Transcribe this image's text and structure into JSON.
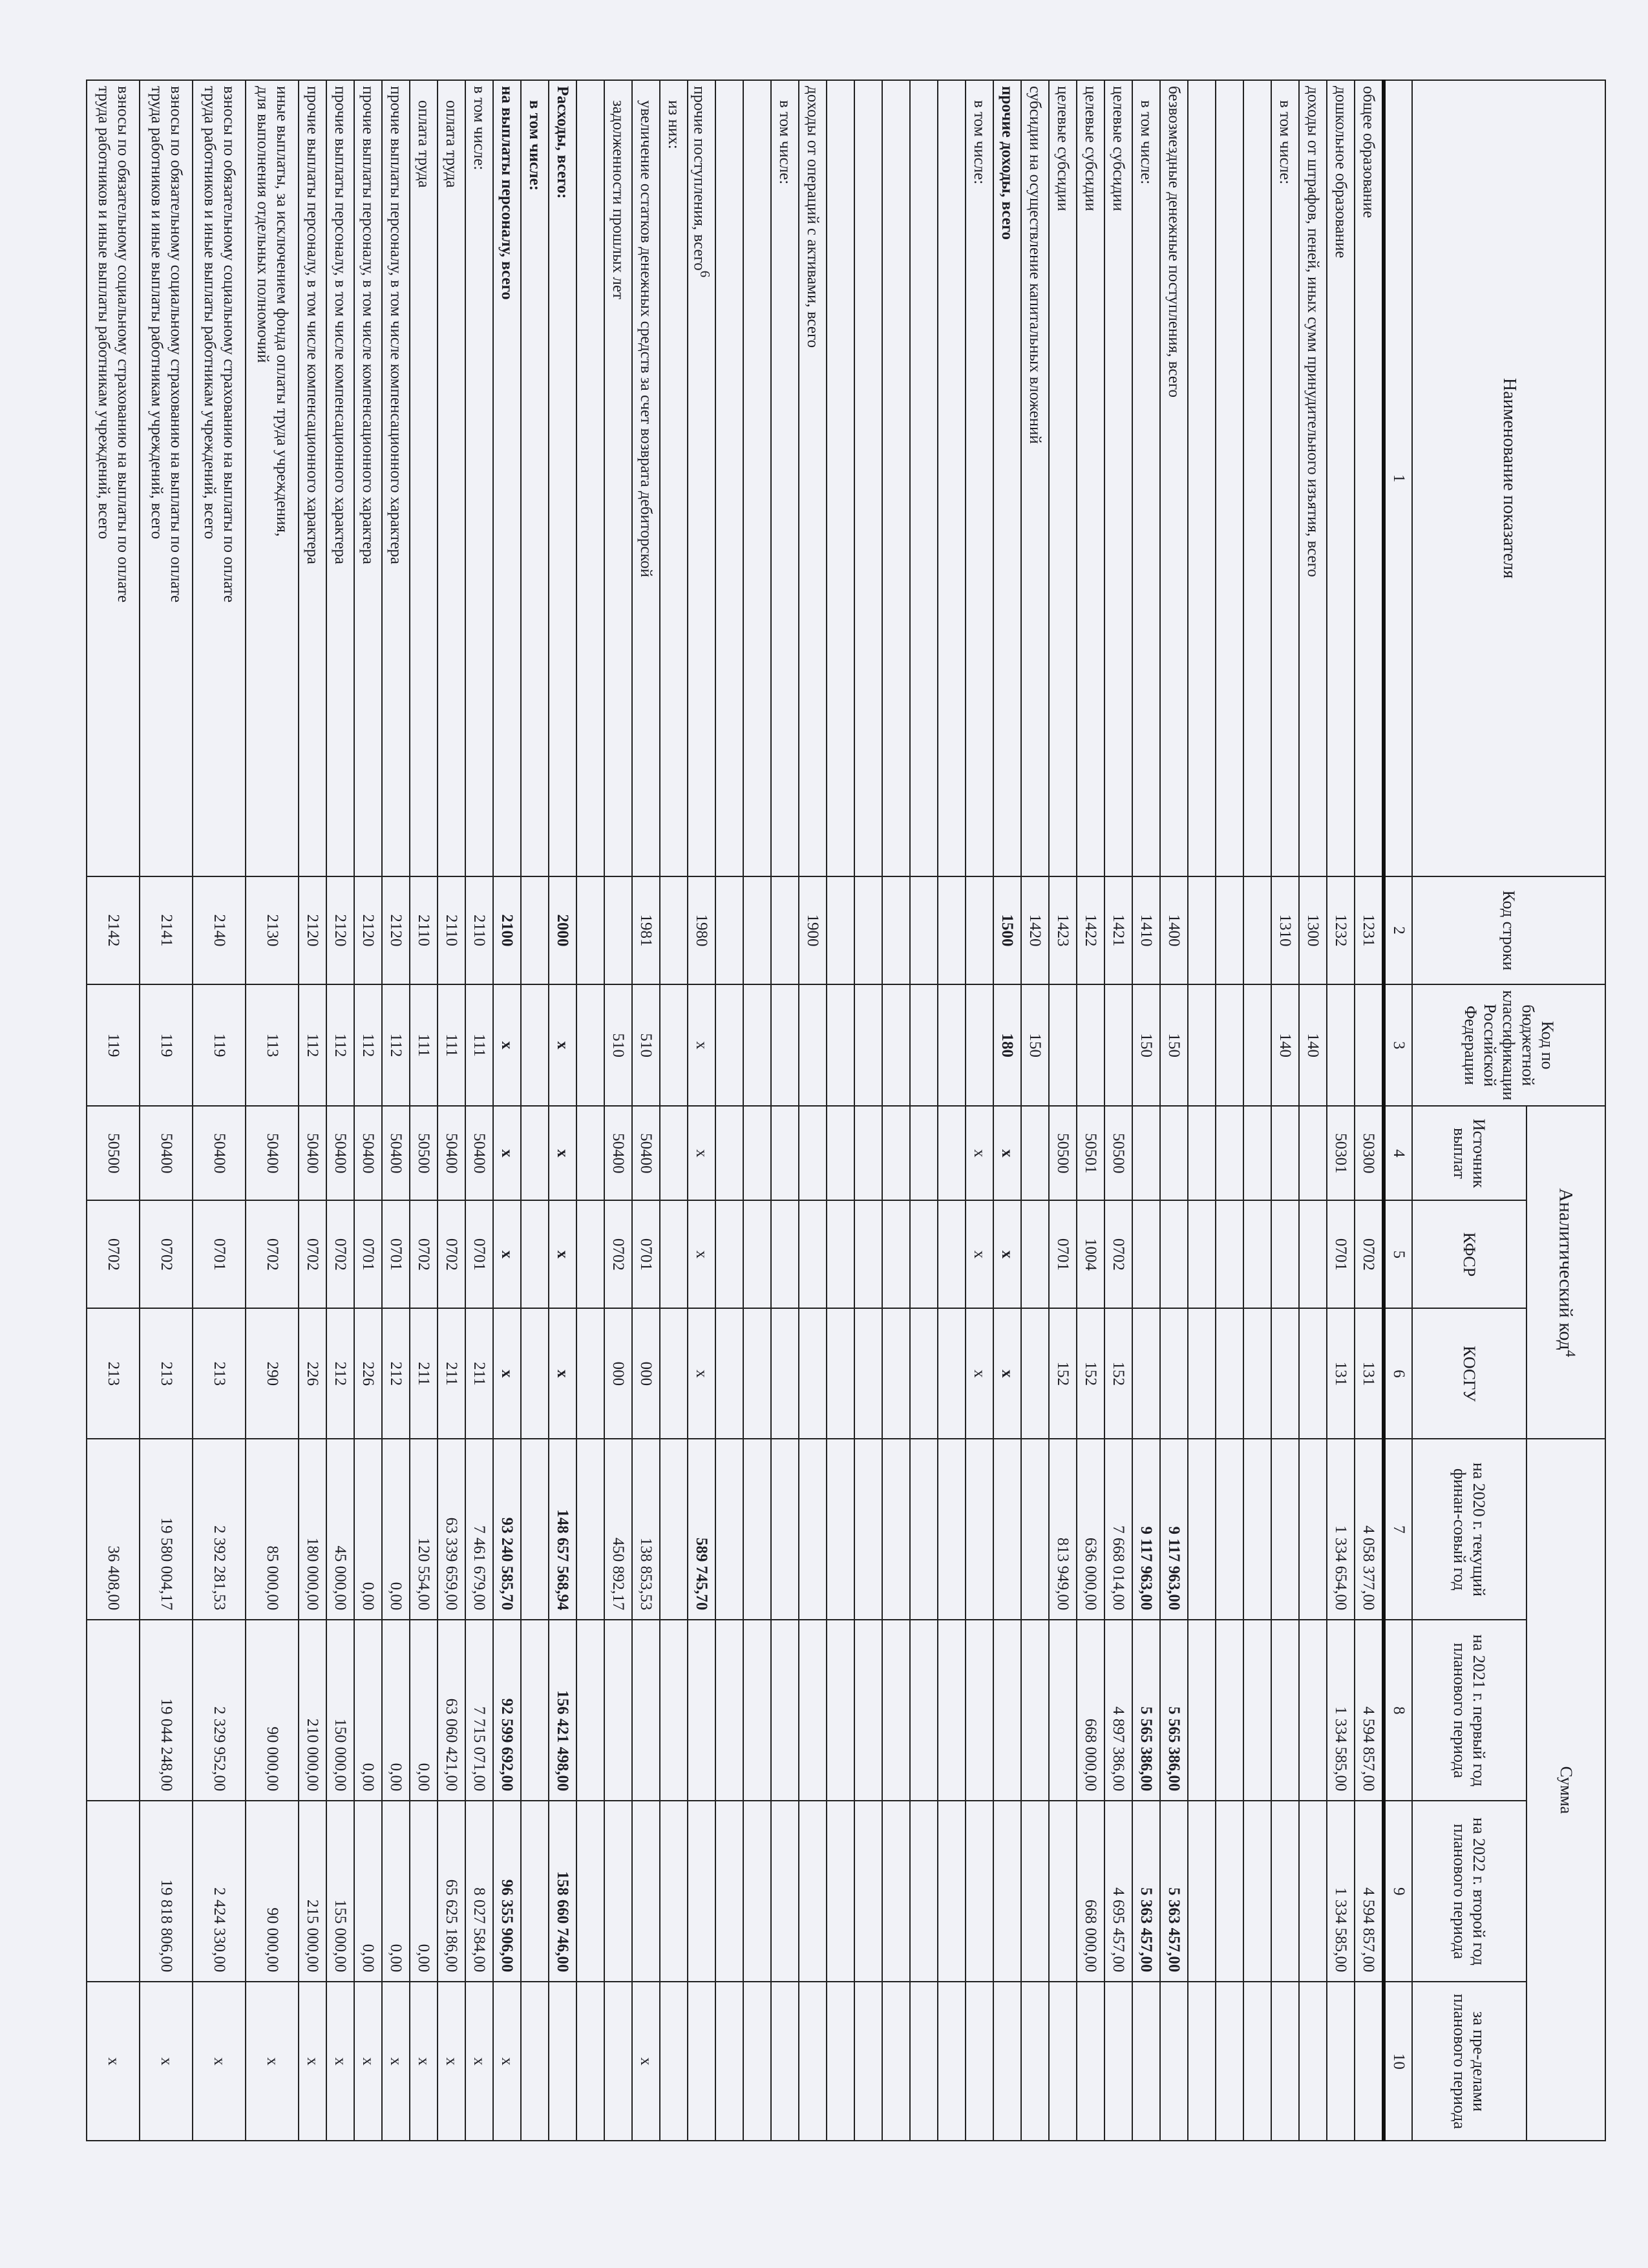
{
  "header": {
    "name": "Наименование показателя",
    "line_code": "Код строки",
    "budget_code": "Код по бюджетной классификации Российской Федерации",
    "analytic_code": "Аналитический код",
    "analytic_code_note": "4",
    "sum": "Сумма",
    "source": "Источник выплат",
    "kfsr": "КФСР",
    "kosgu": "КОСГУ",
    "y2020": "на 2020 г. текущий финан-совый год",
    "y2021": "на 2021 г. первый год планового периода",
    "y2022": "на 2022 г. второй год планового периода",
    "beyond": "за пре-делами планового периода",
    "col_numbers": [
      "1",
      "2",
      "3",
      "4",
      "5",
      "6",
      "7",
      "8",
      "9",
      "10"
    ]
  },
  "rows": [
    {
      "name": "общее образование",
      "code": "1231",
      "kbk": "",
      "src": "50300",
      "kfsr": "0702",
      "kosgu": "131",
      "v1": "4 058 377,00",
      "v2": "4 594 857,00",
      "v3": "4 594 857,00",
      "v4": ""
    },
    {
      "name": "дошкольное образование",
      "code": "1232",
      "kbk": "",
      "src": "50301",
      "kfsr": "0701",
      "kosgu": "131",
      "v1": "1 334 654,00",
      "v2": "1 334 585,00",
      "v3": "1 334 585,00",
      "v4": ""
    },
    {
      "name": "доходы от штрафов, пеней, иных сумм принудительного изъятия, всего",
      "code": "1300",
      "kbk": "140"
    },
    {
      "name": "в том числе:",
      "indent": true,
      "code": "1310",
      "kbk": "140"
    },
    {},
    {},
    {},
    {
      "name": "безвозмездные денежные поступления, всего",
      "code": "1400",
      "kbk": "150",
      "v1": "9 117 963,00",
      "v2": "5 565 386,00",
      "v3": "5 363 457,00",
      "bv": true
    },
    {
      "name": "в том числе:",
      "indent": true,
      "code": "1410",
      "kbk": "150",
      "v1": "9 117 963,00",
      "v2": "5 565 386,00",
      "v3": "5 363 457,00",
      "bv": true
    },
    {
      "name": "целевые субсидии",
      "code": "1421",
      "src": "50500",
      "kfsr": "0702",
      "kosgu": "152",
      "v1": "7 668 014,00",
      "v2": "4 897 386,00",
      "v3": "4 695 457,00"
    },
    {
      "name": "целевые субсидии",
      "code": "1422",
      "src": "50501",
      "kfsr": "1004",
      "kosgu": "152",
      "v1": "636 000,00",
      "v2": "668 000,00",
      "v3": "668 000,00"
    },
    {
      "name": "целевые субсидии",
      "code": "1423",
      "src": "50500",
      "kfsr": "0701",
      "kosgu": "152",
      "v1": "813 949,00"
    },
    {
      "name": "субсидии на осуществление капитальных вложений",
      "code": "1420",
      "kbk": "150"
    },
    {
      "name": "прочие доходы, всего",
      "bold": true,
      "code": "1500",
      "kbk": "180",
      "src": "x",
      "kfsr": "x",
      "kosgu": "x"
    },
    {
      "name": "в том числе:",
      "indent": true,
      "src": "x",
      "kfsr": "x",
      "kosgu": "x"
    },
    {},
    {},
    {},
    {},
    {},
    {
      "name": "доходы от операций с активами, всего",
      "code": "1900"
    },
    {
      "name": "в том числе:",
      "indent": true
    },
    {},
    {},
    {
      "name": "прочие поступления, всего",
      "sup": "6",
      "code": "1980",
      "kbk": "x",
      "src": "x",
      "kfsr": "x",
      "kosgu": "x",
      "v1": "589 745,70",
      "bv": true
    },
    {
      "name": "из них:",
      "indent": true
    },
    {
      "name": "увеличение остатков денежных средств за счет возврата дебиторской",
      "indent": true,
      "code": "1981",
      "kbk": "510",
      "src": "50400",
      "kfsr": "0701",
      "kosgu": "000",
      "v1": "138 853,53",
      "v4": "x"
    },
    {
      "name": "задолженности прошлых лет",
      "indent": true,
      "kbk": "510",
      "src": "50400",
      "kfsr": "0702",
      "kosgu": "000",
      "v1": "450 892,17"
    },
    {},
    {
      "name": "Расходы, всего:",
      "bold": true,
      "code": "2000",
      "kbk": "x",
      "src": "x",
      "kfsr": "x",
      "kosgu": "x",
      "v1": "148 657 568,94",
      "v2": "156 421 498,00",
      "v3": "158 660 746,00",
      "bv": true
    },
    {
      "name": "в том числе:",
      "bold": true,
      "indent": true
    },
    {
      "name": "на выплаты персоналу, всего",
      "bold": true,
      "code": "2100",
      "kbk": "x",
      "src": "x",
      "kfsr": "x",
      "kosgu": "x",
      "v1": "93 240 585,70",
      "v2": "92 599 692,00",
      "v3": "96 355 906,00",
      "v4": "x",
      "bv": true
    },
    {
      "name": "в том числе:",
      "code": "2110",
      "kbk": "111",
      "src": "50400",
      "kfsr": "0701",
      "kosgu": "211",
      "v1": "7 461 679,00",
      "v2": "7 715 071,00",
      "v3": "8 027 584,00",
      "v4": "x"
    },
    {
      "name": "оплата труда",
      "indent": true,
      "code": "2110",
      "kbk": "111",
      "src": "50400",
      "kfsr": "0702",
      "kosgu": "211",
      "v1": "63 339 659,00",
      "v2": "63 060 421,00",
      "v3": "65 625 186,00",
      "v4": "x"
    },
    {
      "name": "оплата труда",
      "indent": true,
      "code": "2110",
      "kbk": "111",
      "src": "50500",
      "kfsr": "0702",
      "kosgu": "211",
      "v1": "120 554,00",
      "v2": "0,00",
      "v3": "0,00",
      "v4": "x"
    },
    {
      "name": "прочие выплаты персоналу, в том числе компенсационного характера",
      "code": "2120",
      "kbk": "112",
      "src": "50400",
      "kfsr": "0701",
      "kosgu": "212",
      "v1": "0,00",
      "v2": "0,00",
      "v3": "0,00",
      "v4": "x"
    },
    {
      "name": "прочие выплаты персоналу, в том числе компенсационного характера",
      "code": "2120",
      "kbk": "112",
      "src": "50400",
      "kfsr": "0701",
      "kosgu": "226",
      "v1": "0,00",
      "v2": "0,00",
      "v3": "0,00",
      "v4": "x"
    },
    {
      "name": "прочие выплаты персоналу, в том числе компенсационного характера",
      "code": "2120",
      "kbk": "112",
      "src": "50400",
      "kfsr": "0702",
      "kosgu": "212",
      "v1": "45 000,00",
      "v2": "150 000,00",
      "v3": "155 000,00",
      "v4": "x"
    },
    {
      "name": "прочие выплаты персоналу, в том числе компенсационного характера",
      "code": "2120",
      "kbk": "112",
      "src": "50400",
      "kfsr": "0702",
      "kosgu": "226",
      "v1": "180 000,00",
      "v2": "210 000,00",
      "v3": "215 000,00",
      "v4": "x"
    },
    {
      "name": "иные выплаты, за исключением фонда оплаты труда учреждения,",
      "name2": "для выполнения отдельных полномочий",
      "code": "2130",
      "kbk": "113",
      "src": "50400",
      "kfsr": "0702",
      "kosgu": "290",
      "v1": "85 000,00",
      "v2": "90 000,00",
      "v3": "90 000,00",
      "v4": "x"
    },
    {
      "name": "взносы по обязательному социальному страхованию на выплаты по оплате",
      "name2": "труда работников и иные выплаты работникам учреждений, всего",
      "code": "2140",
      "kbk": "119",
      "src": "50400",
      "kfsr": "0701",
      "kosgu": "213",
      "v1": "2 392 281,53",
      "v2": "2 329 952,00",
      "v3": "2 424 330,00",
      "v4": "x"
    },
    {
      "name": "взносы по обязательному социальному страхованию на выплаты по оплате",
      "name2": "труда работников и иные выплаты работникам учреждений, всего",
      "code": "2141",
      "kbk": "119",
      "src": "50400",
      "kfsr": "0702",
      "kosgu": "213",
      "v1": "19 580 004,17",
      "v2": "19 044 248,00",
      "v3": "19 818 806,00",
      "v4": "x"
    },
    {
      "name": "взносы по обязательному социальному страхованию на выплаты по оплате",
      "name2": "труда работников и иные выплаты работникам учреждений, всего",
      "code": "2142",
      "kbk": "119",
      "src": "50500",
      "kfsr": "0702",
      "kosgu": "213",
      "v1": "36 408,00",
      "v4": "x"
    }
  ]
}
